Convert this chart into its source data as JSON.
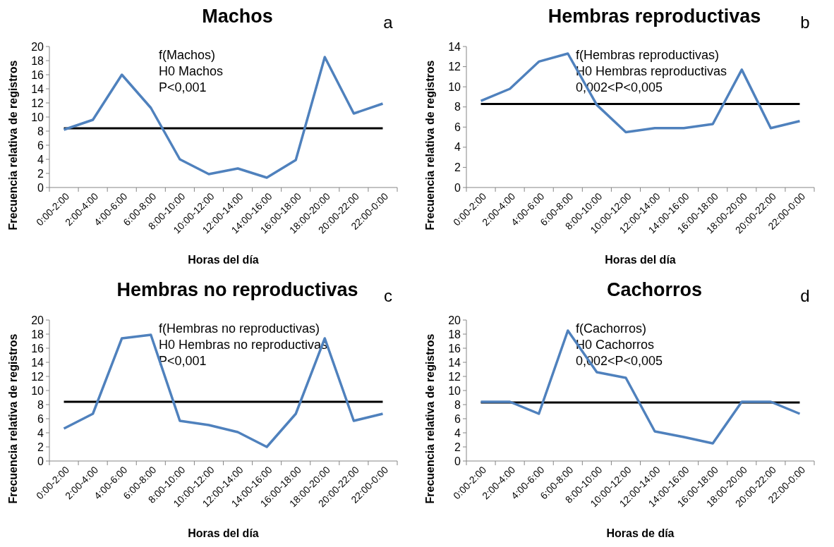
{
  "chart_data": [
    {
      "type": "line",
      "title": "Machos",
      "xlabel": "Horas del día",
      "ylabel": "Frecuencia relativa de registros",
      "annotations": [
        "a",
        "f(Machos)",
        "H0 Machos",
        "P<0,001"
      ],
      "categories": [
        "0:00-2:00",
        "2:00-4:00",
        "4:00-6:00",
        "6:00-8:00",
        "8:00-10:00",
        "10:00-12:00",
        "12:00-14:00",
        "14:00-16:00",
        "16:00-18:00",
        "18:00-20:00",
        "20:00-22:00",
        "22:00-0:00"
      ],
      "series": [
        {
          "color": "#4f81bd",
          "values": [
            8.2,
            9.6,
            16.0,
            11.3,
            4.0,
            1.9,
            2.7,
            1.4,
            3.9,
            18.5,
            10.5,
            11.9
          ]
        }
      ],
      "ref_lines": [
        {
          "axis": "y",
          "value": 8.4,
          "color": "#000000"
        }
      ],
      "ylim": [
        0,
        20
      ],
      "yticks": [
        0,
        2,
        4,
        6,
        8,
        10,
        12,
        14,
        16,
        18,
        20
      ],
      "grid": false,
      "marker": "none"
    },
    {
      "type": "line",
      "title": "Hembras reproductivas",
      "xlabel": "Horas del día",
      "ylabel": "Frecuencia relativa de registros",
      "annotations": [
        "b",
        "f(Hembras reproductivas)",
        "H0 Hembras reproductivas",
        "0,002<P<0,005"
      ],
      "categories": [
        "0:00-2:00",
        "2:00-4:00",
        "4:00-6:00",
        "6:00-8:00",
        "8:00-10:00",
        "10:00-12:00",
        "12:00-14:00",
        "14:00-16:00",
        "16:00-18:00",
        "18:00-20:00",
        "20:00-22:00",
        "22:00-0:00"
      ],
      "series": [
        {
          "color": "#4f81bd",
          "values": [
            8.6,
            9.8,
            12.5,
            13.3,
            8.2,
            5.5,
            5.9,
            5.9,
            6.3,
            11.7,
            5.9,
            6.6
          ]
        }
      ],
      "ref_lines": [
        {
          "axis": "y",
          "value": 8.3,
          "color": "#000000"
        }
      ],
      "ylim": [
        0,
        14
      ],
      "yticks": [
        0,
        2,
        4,
        6,
        8,
        10,
        12,
        14
      ],
      "grid": false,
      "marker": "none"
    },
    {
      "type": "line",
      "title": "Hembras no reproductivas",
      "xlabel": "Horas del día",
      "ylabel": "Frecuencia relativa de registros",
      "annotations": [
        "c",
        "f(Hembras no reproductivas)",
        "H0 Hembras no reproductivas",
        "P<0,001"
      ],
      "categories": [
        "0:00-2:00",
        "2:00-4:00",
        "4:00-6:00",
        "6:00-8:00",
        "8:00-10:00",
        "10:00-12:00",
        "12:00-14:00",
        "14:00-16:00",
        "16:00-18:00",
        "18:00-20:00",
        "20:00-22:00",
        "22:00-0:00"
      ],
      "series": [
        {
          "color": "#4f81bd",
          "values": [
            4.6,
            6.7,
            17.4,
            17.9,
            5.7,
            5.1,
            4.1,
            2.0,
            6.7,
            17.4,
            5.7,
            6.7
          ]
        }
      ],
      "ref_lines": [
        {
          "axis": "y",
          "value": 8.4,
          "color": "#000000"
        }
      ],
      "ylim": [
        0,
        20
      ],
      "yticks": [
        0,
        2,
        4,
        6,
        8,
        10,
        12,
        14,
        16,
        18,
        20
      ],
      "grid": false,
      "marker": "none"
    },
    {
      "type": "line",
      "title": "Cachorros",
      "xlabel": "Horas de día",
      "ylabel": "Frecuencia relativa de registros",
      "annotations": [
        "d",
        "f(Cachorros)",
        "H0 Cachorros",
        "0,002<P<0,005"
      ],
      "categories": [
        "0:00-2:00",
        "2:00-4:00",
        "4:00-6:00",
        "6:00-8:00",
        "8:00-10:00",
        "10:00-12:00",
        "12:00-14:00",
        "14:00-16:00",
        "16:00-18:00",
        "18:00-20:00",
        "20:00-22:00",
        "22:00-0:00"
      ],
      "series": [
        {
          "color": "#4f81bd",
          "values": [
            8.4,
            8.4,
            6.7,
            18.5,
            12.6,
            11.8,
            4.2,
            3.4,
            2.5,
            8.4,
            8.4,
            6.7
          ]
        }
      ],
      "ref_lines": [
        {
          "axis": "y",
          "value": 8.3,
          "color": "#000000"
        }
      ],
      "ylim": [
        0,
        20
      ],
      "yticks": [
        0,
        2,
        4,
        6,
        8,
        10,
        12,
        14,
        16,
        18,
        20
      ],
      "grid": false,
      "marker": "none"
    }
  ]
}
